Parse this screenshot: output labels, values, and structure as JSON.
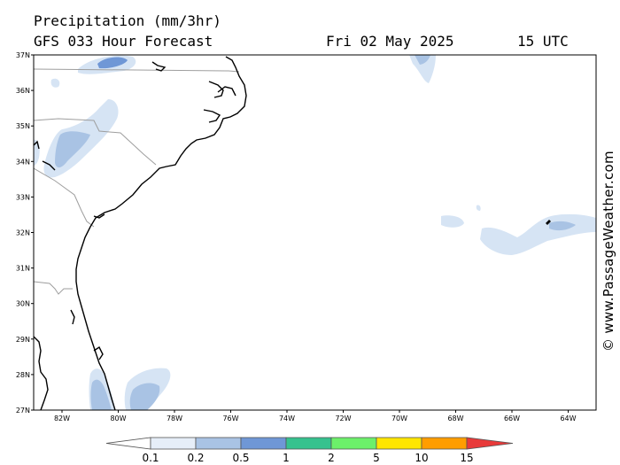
{
  "header": {
    "title": "Precipitation (mm/3hr)",
    "forecast": "GFS 033 Hour Forecast",
    "date": "Fri 02 May 2025",
    "time": "15 UTC"
  },
  "credit": "© www.PassageWeather.com",
  "latitude_labels": [
    "37N",
    "36N",
    "35N",
    "34N",
    "33N",
    "32N",
    "31N",
    "30N",
    "29N",
    "28N",
    "27N"
  ],
  "longitude_labels": [
    "82W",
    "80W",
    "78W",
    "76W",
    "74W",
    "72W",
    "70W",
    "68W",
    "66W",
    "64W"
  ],
  "legend": {
    "values": [
      "0.1",
      "0.2",
      "0.5",
      "1",
      "2",
      "5",
      "10",
      "15"
    ],
    "colors": [
      "#ffffff",
      "#e6eef8",
      "#a9c3e4",
      "#6f97d6",
      "#36c28e",
      "#6cf06a",
      "#ffe600",
      "#ff9d00",
      "#e83a3a"
    ]
  },
  "colors": {
    "land_border": "#9e9e9e",
    "coastline": "#000000",
    "precip_light": "#d6e4f4",
    "precip_medium": "#a9c3e4",
    "precip_heavy": "#6f97d6"
  }
}
